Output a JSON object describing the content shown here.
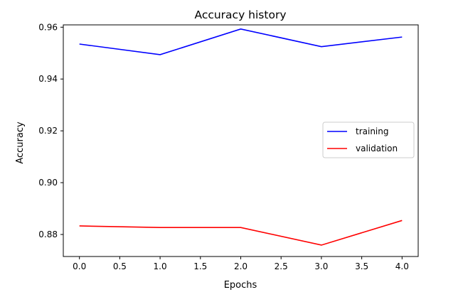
{
  "chart_data": {
    "type": "line",
    "title": "Accuracy history",
    "xlabel": "Epochs",
    "ylabel": "Accuracy",
    "x": [
      0,
      1,
      2,
      3,
      4
    ],
    "xlim": [
      -0.2,
      4.2
    ],
    "ylim": [
      0.8715,
      0.9609
    ],
    "xticks": [
      "0.0",
      "0.5",
      "1.0",
      "1.5",
      "2.0",
      "2.5",
      "3.0",
      "3.5",
      "4.0"
    ],
    "yticks": [
      "0.88",
      "0.90",
      "0.92",
      "0.94",
      "0.96"
    ],
    "grid": false,
    "legend_position": "center-right",
    "series": [
      {
        "name": "training",
        "color": "#0000ff",
        "values": [
          0.9535,
          0.9494,
          0.9593,
          0.9525,
          0.9562
        ]
      },
      {
        "name": "validation",
        "color": "#ff0000",
        "values": [
          0.8833,
          0.8827,
          0.8827,
          0.8759,
          0.8854
        ]
      }
    ]
  }
}
